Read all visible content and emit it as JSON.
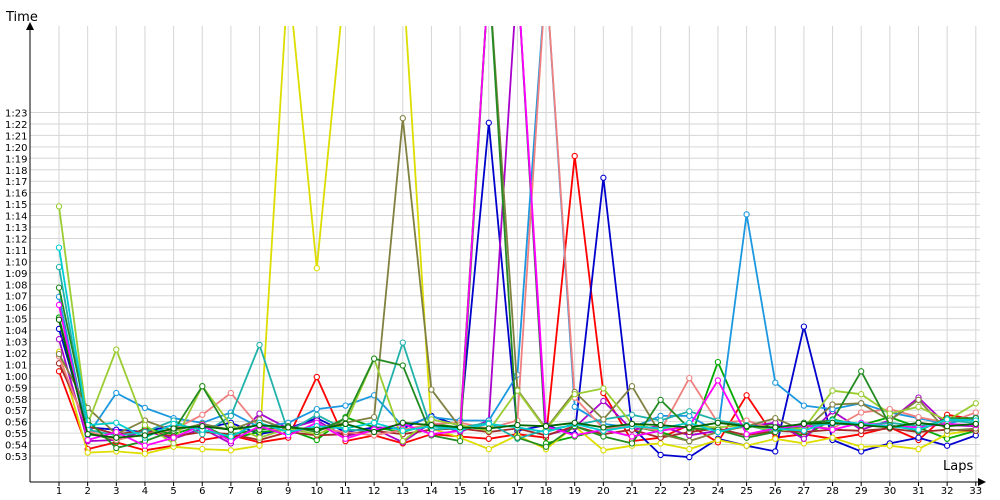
{
  "chart_data": {
    "type": "line",
    "xlabel": "Laps",
    "ylabel": "Time",
    "x": [
      1,
      2,
      3,
      4,
      5,
      6,
      7,
      8,
      9,
      10,
      11,
      12,
      13,
      14,
      15,
      16,
      17,
      18,
      19,
      20,
      21,
      22,
      23,
      24,
      25,
      26,
      27,
      28,
      29,
      30,
      31,
      32,
      33
    ],
    "y_tick_labels": [
      "0:53",
      "0:54",
      "0:55",
      "0:56",
      "0:57",
      "0:58",
      "0:59",
      "1:00",
      "1:01",
      "1:02",
      "1:03",
      "1:04",
      "1:05",
      "1:06",
      "1:07",
      "1:08",
      "1:09",
      "1:10",
      "1:11",
      "1:12",
      "1:13",
      "1:14",
      "1:15",
      "1:16",
      "1:17",
      "1:18",
      "1:19",
      "1:20",
      "1:21",
      "1:22",
      "1:23"
    ],
    "ylim_seconds": [
      52.3,
      88
    ],
    "grid": true,
    "legend": "none",
    "series": [
      {
        "color": "#ff0000",
        "values": [
          60.4,
          53.6,
          54.2,
          53.5,
          53.9,
          54.4,
          54.8,
          54.2,
          54.6,
          59.9,
          54.3,
          54.8,
          54.1,
          54.9,
          54.7,
          54.5,
          54.9,
          54.6,
          79.2,
          58.5,
          54.3,
          54.6,
          55.7,
          54.2,
          58.3,
          54.6,
          54.9,
          54.5,
          54.9,
          55.5,
          54.4,
          56.6,
          56.2
        ]
      },
      {
        "color": "#0000cc",
        "values": [
          64.1,
          55.5,
          55.3,
          55.1,
          55.7,
          55.4,
          55.9,
          54.9,
          55.4,
          56.3,
          55.1,
          55.5,
          55.4,
          56.5,
          55.6,
          82.1,
          55.2,
          55.7,
          54.9,
          77.3,
          55.5,
          53.1,
          52.9,
          54.5,
          53.9,
          53.4,
          64.3,
          54.4,
          53.4,
          54.1,
          54.6,
          53.9,
          54.8
        ]
      },
      {
        "color": "#00aa00",
        "values": [
          65.1,
          55.1,
          54.3,
          55.4,
          54.9,
          55.7,
          54.5,
          55.1,
          55.3,
          54.4,
          56.4,
          55.5,
          55.1,
          55.8,
          55.5,
          95,
          95,
          54.1,
          54.7,
          55.3,
          55.6,
          55.1,
          54.3,
          61.2,
          55.5,
          55.8,
          54.7,
          56.2,
          55.7,
          56.4,
          55.5,
          54.5,
          55.2
        ]
      },
      {
        "color": "#dddd00",
        "values": [
          62.1,
          53.3,
          53.4,
          53.2,
          53.8,
          53.6,
          53.5,
          53.9,
          95,
          69.4,
          95,
          95,
          95,
          55.4,
          54.6,
          53.6,
          54.8,
          53.6,
          55.6,
          53.5,
          53.9,
          54.1,
          53.6,
          54.4,
          53.9,
          54.5,
          54.1,
          54.6,
          53.8,
          53.9,
          53.6,
          54.9,
          55.3
        ]
      },
      {
        "color": "#aa00cc",
        "values": [
          63.2,
          54.3,
          54.4,
          55.2,
          54.5,
          55.4,
          54.1,
          56.7,
          55.4,
          56.1,
          54.7,
          55.4,
          54.2,
          55.9,
          55.1,
          56.1,
          95,
          54.8,
          55.5,
          57.8,
          55.3,
          55.6,
          54.8,
          55.2,
          55.6,
          55.9,
          54.5,
          56.9,
          55.3,
          56.1,
          58.1,
          55.7,
          55.6
        ]
      },
      {
        "color": "#1b98e0",
        "values": [
          66.9,
          54.8,
          58.5,
          57.2,
          56.3,
          55.9,
          56.8,
          55.5,
          55.9,
          57.1,
          57.4,
          58.3,
          55.6,
          56.4,
          56.1,
          56.1,
          60.1,
          95,
          57.3,
          55.8,
          55.5,
          56.5,
          56.5,
          55.1,
          74.1,
          59.4,
          57.4,
          57.1,
          57.6,
          56.8,
          56.3,
          55.8,
          56.4
        ]
      },
      {
        "color": "#a52a2a",
        "values": [
          61.1,
          55.6,
          54.9,
          55.2,
          54.7,
          55.1,
          54.9,
          54.4,
          55.1,
          54.8,
          54.9,
          55.2,
          54.9,
          55.3,
          55.4,
          55.1,
          55.4,
          54.8,
          55.6,
          54.9,
          55.3,
          54.6,
          55.1,
          55.4,
          54.8,
          55.2,
          55.1,
          55.3,
          55.2,
          55.4,
          55.1,
          55.3,
          55.2
        ]
      },
      {
        "color": "#f08080",
        "values": [
          61.7,
          55.2,
          54.4,
          54.9,
          55.3,
          56.6,
          58.5,
          55.5,
          55.2,
          55.4,
          55.1,
          54.8,
          55.3,
          55.8,
          55.9,
          55.4,
          56.1,
          95,
          58.1,
          55.4,
          55.6,
          55.2,
          59.8,
          55.9,
          56.1,
          55.3,
          55.6,
          55.4,
          56.8,
          57.1,
          56.4,
          55.9,
          56.8
        ]
      },
      {
        "color": "#20b2aa",
        "values": [
          69.5,
          55.3,
          54.8,
          55.1,
          56.1,
          54.9,
          56.5,
          62.7,
          55.1,
          56.6,
          55.3,
          55.2,
          62.9,
          55.3,
          55.5,
          55.9,
          54.5,
          55.3,
          55.7,
          56.2,
          56.6,
          56.1,
          56.9,
          56.1,
          55.7,
          55.1,
          55.6,
          55.8,
          55.7,
          55.9,
          55.6,
          56.1,
          55.9
        ]
      },
      {
        "color": "#808040",
        "values": [
          61.9,
          57.2,
          54.9,
          56.1,
          55.2,
          55.8,
          55.3,
          56.2,
          55.3,
          55.5,
          55.9,
          56.4,
          82.5,
          58.8,
          55.5,
          95,
          58.8,
          55.4,
          58.6,
          56.2,
          59.1,
          54.9,
          54.3,
          55.1,
          55.6,
          56.3,
          55.2,
          57.5,
          57.6,
          56.1,
          57.9,
          55.2,
          55.4
        ]
      },
      {
        "color": "#9acd32",
        "values": [
          74.8,
          55.8,
          62.3,
          55.7,
          54.1,
          59.1,
          55.7,
          54.6,
          55.4,
          54.9,
          55.8,
          61.5,
          54.3,
          56.2,
          55.7,
          55.2,
          58.7,
          55.3,
          58.4,
          58.9,
          55.8,
          55.3,
          55.6,
          55.5,
          55.7,
          55.2,
          55.4,
          58.7,
          58.4,
          56.7,
          57.3,
          56.1,
          57.6
        ]
      },
      {
        "color": "#228b22",
        "values": [
          67.7,
          56.1,
          53.7,
          54.3,
          55.2,
          59.1,
          54.9,
          55.3,
          55.6,
          55.1,
          56.3,
          61.5,
          60.9,
          54.8,
          54.3,
          95,
          54.6,
          53.8,
          55.6,
          54.7,
          54.1,
          57.9,
          55.4,
          55.3,
          54.6,
          55.1,
          55.9,
          56.1,
          60.4,
          55.7,
          55.2,
          56.3,
          56.3
        ]
      },
      {
        "color": "#ff00ff",
        "values": [
          66.2,
          54.4,
          55.1,
          53.9,
          54.6,
          55.7,
          54.3,
          55.6,
          54.8,
          55.9,
          54.5,
          55.3,
          55.8,
          54.9,
          55.2,
          95,
          95,
          55.6,
          54.8,
          55.3,
          54.7,
          55.2,
          55.6,
          59.6,
          54.9,
          55.4,
          55.7,
          55.3,
          55.9,
          55.6,
          55.5,
          55.8,
          55.7
        ]
      },
      {
        "color": "#00ced1",
        "values": [
          71.2,
          55.7,
          55.9,
          54.6,
          55.8,
          55.3,
          54.7,
          55.9,
          55.1,
          55.6,
          55.4,
          55.9,
          55.2,
          55.6,
          55.3,
          55.8,
          55.5,
          55.1,
          55.8,
          55.2,
          55.6,
          55.4,
          55.9,
          55.1,
          55.7,
          55.4,
          55.2,
          56.1,
          55.8,
          55.6,
          55.3,
          56.2,
          56.1
        ]
      },
      {
        "color": "#006400",
        "values": [
          64.9,
          54.9,
          54.6,
          54.8,
          55.4,
          55.6,
          55.3,
          55.7,
          55.5,
          55.3,
          55.8,
          55.1,
          55.9,
          55.7,
          55.5,
          55.4,
          55.7,
          55.6,
          55.9,
          55.5,
          55.8,
          55.7,
          55.5,
          55.9,
          55.6,
          55.5,
          55.8,
          55.9,
          55.7,
          55.5,
          55.9,
          55.6,
          55.8
        ]
      }
    ]
  }
}
